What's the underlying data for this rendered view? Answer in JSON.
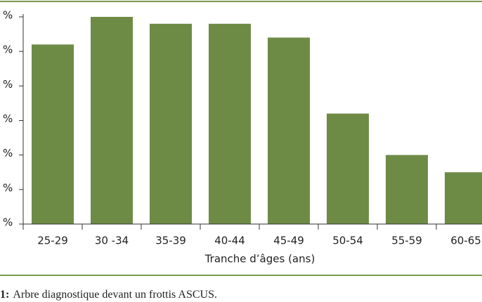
{
  "chart_data": {
    "type": "bar",
    "x_label": "Tranche d’âges (ans)",
    "categories": [
      "25-29",
      "30 -34",
      "35-39",
      "40-44",
      "45-49",
      "50-54",
      "55-59",
      "60-65"
    ],
    "values": [
      52,
      60,
      58,
      58,
      54,
      32,
      20,
      15
    ],
    "color": "#6e8b46",
    "ylim": [
      0,
      60
    ],
    "yticks": [
      {
        "value": 0,
        "label": "%"
      },
      {
        "value": 10,
        "label": "%"
      },
      {
        "value": 20,
        "label": "%"
      },
      {
        "value": 30,
        "label": "%"
      },
      {
        "value": 40,
        "label": "%"
      },
      {
        "value": 50,
        "label": "%"
      },
      {
        "value": 60,
        "label": "%"
      }
    ]
  },
  "caption": {
    "label": "1:",
    "text": "Arbre diagnostique devant un frottis ASCUS."
  }
}
